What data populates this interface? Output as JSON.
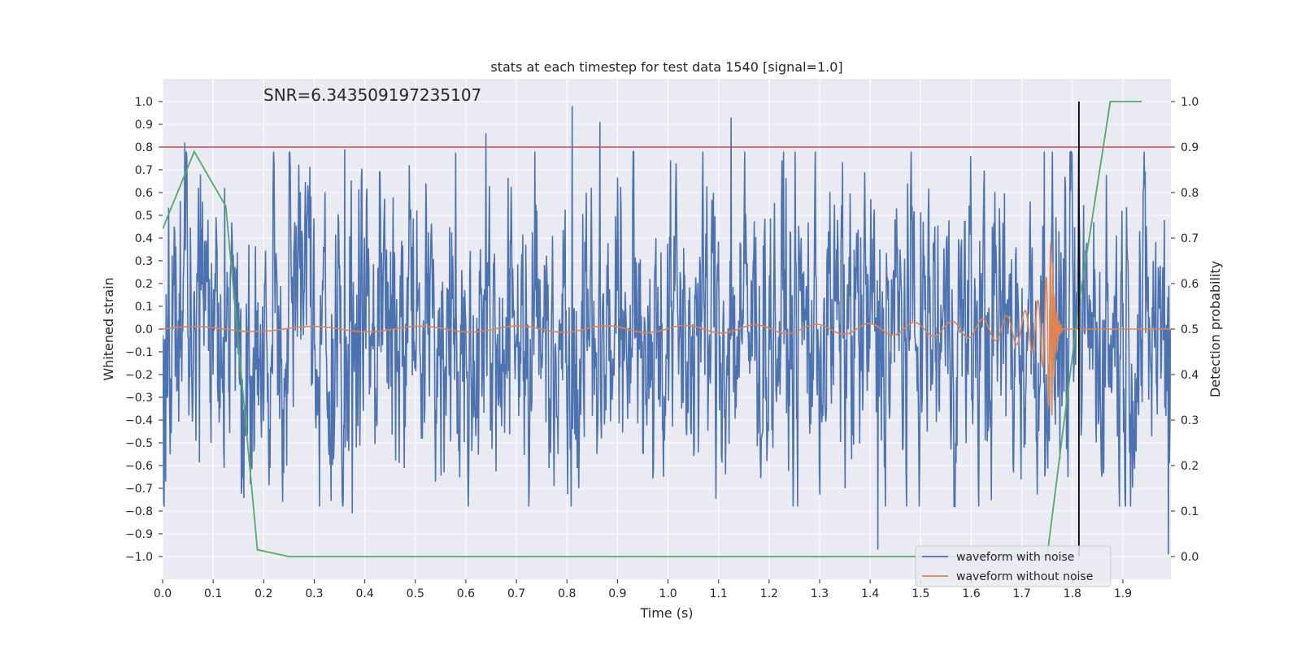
{
  "chart_data": {
    "type": "line",
    "title": "stats at each timestep for test data 1540 [signal=1.0]",
    "xlabel": "Time (s)",
    "ylabel": "Whitened strain",
    "y2label": "Detection probability",
    "xlim": [
      0.0,
      1.995
    ],
    "ylim": [
      -1.1,
      1.1
    ],
    "y2lim": [
      -0.05,
      1.05
    ],
    "x_ticks": [
      0.0,
      0.1,
      0.2,
      0.3,
      0.4,
      0.5,
      0.6,
      0.7,
      0.8,
      0.9,
      1.0,
      1.1,
      1.2,
      1.3,
      1.4,
      1.5,
      1.6,
      1.7,
      1.8,
      1.9
    ],
    "x_tick_labels": [
      "0.0",
      "0.1",
      "0.2",
      "0.3",
      "0.4",
      "0.5",
      "0.6",
      "0.7",
      "0.8",
      "0.9",
      "1.0",
      "1.1",
      "1.2",
      "1.3",
      "1.4",
      "1.5",
      "1.6",
      "1.7",
      "1.8",
      "1.9"
    ],
    "y_ticks": [
      1.0,
      0.9,
      0.8,
      0.7,
      0.6,
      0.5,
      0.4,
      0.3,
      0.2,
      0.1,
      0.0,
      -0.1,
      -0.2,
      -0.3,
      -0.4,
      -0.5,
      -0.6,
      -0.7,
      -0.8,
      -0.9,
      -1.0
    ],
    "y_tick_labels": [
      "1.0",
      "0.9",
      "0.8",
      "0.7",
      "0.6",
      "0.5",
      "0.4",
      "0.3",
      "0.2",
      "0.1",
      "0.0",
      "−0.1",
      "−0.2",
      "−0.3",
      "−0.4",
      "−0.5",
      "−0.6",
      "−0.7",
      "−0.8",
      "−0.9",
      "−1.0"
    ],
    "y2_ticks": [
      1.0,
      0.9,
      0.8,
      0.7,
      0.6,
      0.5,
      0.4,
      0.3,
      0.2,
      0.1,
      0.0
    ],
    "y2_tick_labels": [
      "1.0",
      "0.9",
      "0.8",
      "0.7",
      "0.6",
      "0.5",
      "0.4",
      "0.3",
      "0.2",
      "0.1",
      "0.0"
    ],
    "annotation": "SNR=6.343509197235107",
    "threshold": {
      "y2": 0.9,
      "color": "#c44e52"
    },
    "marker_line": {
      "x": 1.813,
      "y2_from": 0.0,
      "y2_to": 1.0,
      "color": "#000000"
    },
    "series": [
      {
        "name": "waveform with noise",
        "axis": "left",
        "color": "#4c72b0",
        "generated": "dense random noise, amplitude envelope about ±0.55, peaks up to ±0.98",
        "noise_amplitude": 0.28,
        "sample_count": 2000,
        "peaks": [
          [
            0.044,
            0.82
          ],
          [
            0.123,
            0.62
          ],
          [
            0.36,
            0.79
          ],
          [
            0.375,
            -0.81
          ],
          [
            0.64,
            0.86
          ],
          [
            0.81,
            0.98
          ],
          [
            0.865,
            0.91
          ],
          [
            1.125,
            0.93
          ],
          [
            1.415,
            -0.97
          ],
          [
            1.745,
            0.78
          ],
          [
            1.99,
            -0.99
          ]
        ]
      },
      {
        "name": "waveform without noise",
        "axis": "left",
        "color": "#dd8452",
        "generated": "chirp: amplitude and frequency rise toward merger at 1.76 s, then flat at zero"
      },
      {
        "name": "Detection probability",
        "axis": "right",
        "color": "#55a868",
        "x": [
          0.0,
          0.0625,
          0.125,
          0.1875,
          0.25,
          0.3125,
          1.5,
          1.75,
          1.8125,
          1.875,
          1.9375
        ],
        "values": [
          0.72,
          0.89,
          0.77,
          0.015,
          0.0,
          0.0,
          0.0,
          0.0,
          0.55,
          1.0,
          1.0
        ]
      }
    ],
    "legend": {
      "position": "lower-right",
      "entries": [
        "waveform with noise",
        "waveform without noise"
      ]
    },
    "grid": true,
    "background_color": "#eaeaf2",
    "grid_color": "#ffffff"
  }
}
